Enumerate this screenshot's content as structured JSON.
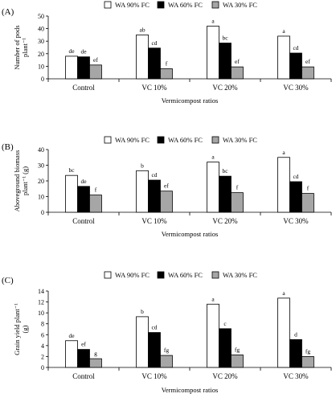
{
  "colors": {
    "WA 90% FC": "#ffffff",
    "WA 60% FC": "#000000",
    "WA 30% FC": "#a6a6a6"
  },
  "chart_data": [
    {
      "type": "bar",
      "panel_label": "(A)",
      "categories": [
        "Control",
        "VC 10%",
        "VC 20%",
        "VC 30%"
      ],
      "series": [
        {
          "name": "WA 90% FC",
          "values": [
            18,
            35,
            42,
            34
          ],
          "labels": [
            "de",
            "ab",
            "a",
            "a"
          ]
        },
        {
          "name": "WA 60% FC",
          "values": [
            17.5,
            24.5,
            28.5,
            20.5
          ],
          "labels": [
            "de",
            "cd",
            "bc",
            "cd"
          ]
        },
        {
          "name": "WA 30% FC",
          "values": [
            11,
            8,
            9.5,
            9.5
          ],
          "labels": [
            "ef",
            "f",
            "ef",
            "ef"
          ]
        }
      ],
      "xlabel": "Vermicompost ratios",
      "ylabel": [
        "Number of pods",
        "plant⁻¹"
      ],
      "ylim": [
        0,
        50
      ],
      "yticks": [
        "0",
        "10",
        "20",
        "30",
        "40",
        "50"
      ],
      "legend_position": "top"
    },
    {
      "type": "bar",
      "panel_label": "(B)",
      "categories": [
        "Control",
        "VC 10%",
        "VC 20%",
        "VC 30%"
      ],
      "series": [
        {
          "name": "WA 90% FC",
          "values": [
            23.5,
            26.5,
            32,
            35
          ],
          "labels": [
            "bc",
            "b",
            "a",
            "a"
          ]
        },
        {
          "name": "WA 60% FC",
          "values": [
            16.5,
            20.5,
            23,
            19.5
          ],
          "labels": [
            "de",
            "cd",
            "bc",
            "cd"
          ]
        },
        {
          "name": "WA 30% FC",
          "values": [
            11,
            13.5,
            12.5,
            12
          ],
          "labels": [
            "f",
            "ef",
            "f",
            "f"
          ]
        }
      ],
      "xlabel": "Vermicompost ratios",
      "ylabel": [
        "Aboveground biomass",
        "plant⁻¹ (g)"
      ],
      "ylim": [
        0,
        40
      ],
      "yticks": [
        "0",
        "10",
        "20",
        "30",
        "40"
      ],
      "legend_position": "top"
    },
    {
      "type": "bar",
      "panel_label": "(C)",
      "categories": [
        "Control",
        "VC 10%",
        "VC 20%",
        "VC 30%"
      ],
      "series": [
        {
          "name": "WA 90% FC",
          "values": [
            4.9,
            9.3,
            11.6,
            12.7
          ],
          "labels": [
            "de",
            "b",
            "a",
            "a"
          ]
        },
        {
          "name": "WA 60% FC",
          "values": [
            3.3,
            6.4,
            7.1,
            5.1
          ],
          "labels": [
            "ef",
            "cd",
            "c",
            "d"
          ]
        },
        {
          "name": "WA 30% FC",
          "values": [
            1.6,
            2.2,
            2.3,
            2.0
          ],
          "labels": [
            "g",
            "fg",
            "fg",
            "fg"
          ]
        }
      ],
      "xlabel": "Vermicompost ratios",
      "ylabel": [
        "Grain yield plant⁻¹",
        "(g)"
      ],
      "ylim": [
        0,
        14
      ],
      "yticks": [
        "0",
        "2",
        "4",
        "6",
        "8",
        "10",
        "12",
        "14"
      ],
      "legend_position": "top"
    }
  ]
}
